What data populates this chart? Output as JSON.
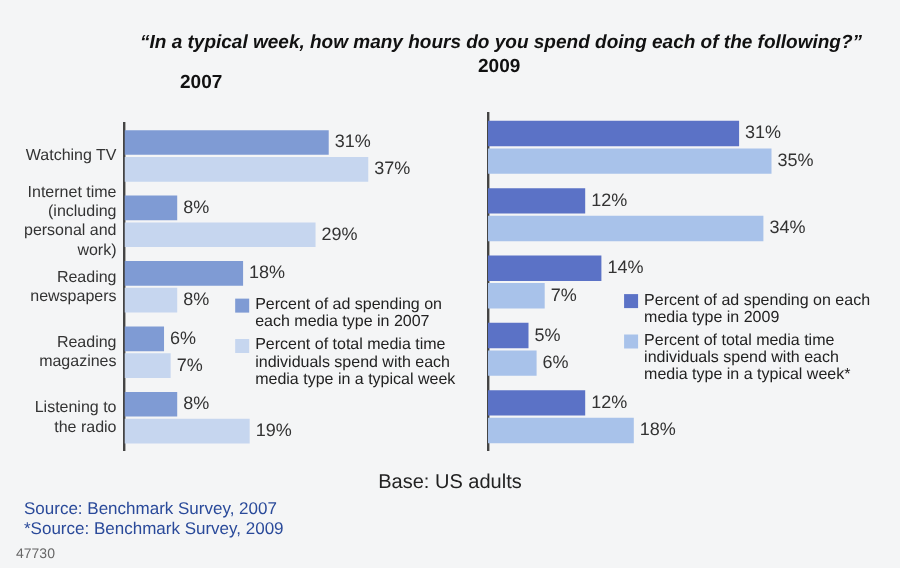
{
  "chart_data": [
    {
      "type": "bar",
      "orientation": "horizontal",
      "title": "“In a typical week, how many hours do you spend doing each of the following?”",
      "subtitle": "2007",
      "categories": [
        "Watching TV",
        "Internet time (including personal and work)",
        "Reading newspapers",
        "Reading magazines",
        "Listening to the radio"
      ],
      "series": [
        {
          "name": "Percent of ad spending on each media type in 2007",
          "color": "#7f9bd4",
          "values": [
            31,
            8,
            18,
            6,
            8
          ],
          "value_labels": [
            "31%",
            "8%",
            "18%",
            "6%",
            "8%"
          ]
        },
        {
          "name": "Percent of total media time individuals spend with each media type in a typical week",
          "color": "#c6d6ef",
          "values": [
            37,
            29,
            8,
            7,
            19
          ],
          "value_labels": [
            "37%",
            "29%",
            "8%",
            "7%",
            "19%"
          ]
        }
      ],
      "legend": "right",
      "grid": false,
      "annotations": [
        "Base: US adults",
        "Source: Benchmark Survey, 2007",
        "*Source: Benchmark Survey, 2009",
        "47730"
      ]
    },
    {
      "type": "bar",
      "orientation": "horizontal",
      "title": "2009",
      "categories": [
        null,
        null,
        null,
        null,
        null
      ],
      "series": [
        {
          "name": "Percent of ad spending on each media type in 2009",
          "color": "#5b72c6",
          "values": [
            31,
            12,
            14,
            5,
            12
          ],
          "value_labels": [
            "31%",
            "12%",
            "14%",
            "5%",
            "12%"
          ]
        },
        {
          "name": "Percent of total media time individuals spend with each media type in a typical week*",
          "color": "#a8c2ea",
          "values": [
            35,
            34,
            7,
            6,
            18
          ],
          "value_labels": [
            "35%",
            "34%",
            "7%",
            "6%",
            "18%"
          ]
        }
      ],
      "legend": "right",
      "grid": false
    }
  ]
}
